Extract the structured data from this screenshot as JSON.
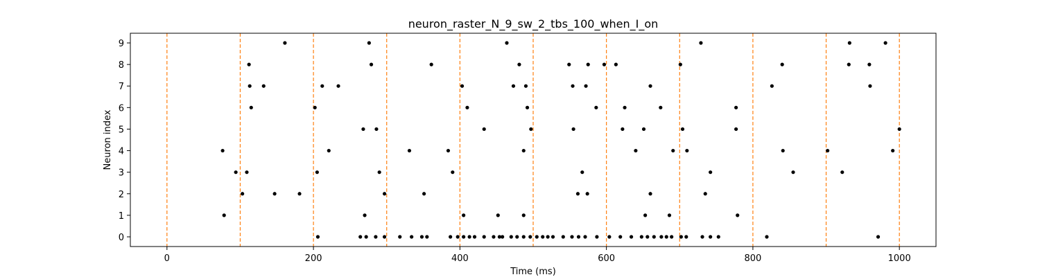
{
  "chart_data": {
    "type": "scatter",
    "title": "neuron_raster_N_9_sw_2_tbs_100_when_I_on",
    "xlabel": "Time (ms)",
    "ylabel": "Neuron index",
    "xlim": [
      -50,
      1050
    ],
    "ylim": [
      -0.45,
      9.45
    ],
    "x_ticks": [
      0,
      200,
      400,
      600,
      800,
      1000
    ],
    "y_ticks": [
      0,
      1,
      2,
      3,
      4,
      5,
      6,
      7,
      8,
      9
    ],
    "grid": false,
    "marker_color": "#000000",
    "vline_color": "#ff7f0e",
    "vlines_x": [
      0,
      100,
      200,
      300,
      400,
      500,
      600,
      700,
      800,
      900,
      1000
    ],
    "spikes": [
      {
        "neuron": 0,
        "times": [
          206,
          264,
          272,
          285,
          297,
          318,
          334,
          348,
          355,
          387,
          397,
          405,
          413,
          420,
          433,
          446,
          454,
          458,
          470,
          478,
          487,
          496,
          505,
          513,
          520,
          527,
          541,
          553,
          562,
          571,
          587,
          604,
          619,
          634,
          648,
          656,
          665,
          675,
          682,
          689,
          702,
          709,
          731,
          742,
          753,
          819,
          971
        ]
      },
      {
        "neuron": 1,
        "times": [
          78,
          270,
          405,
          452,
          487,
          653,
          686,
          779
        ]
      },
      {
        "neuron": 2,
        "times": [
          103,
          147,
          181,
          297,
          351,
          561,
          574,
          660,
          735
        ]
      },
      {
        "neuron": 3,
        "times": [
          94,
          109,
          205,
          290,
          390,
          567,
          742,
          855,
          922
        ]
      },
      {
        "neuron": 4,
        "times": [
          76,
          221,
          331,
          384,
          487,
          640,
          691,
          710,
          841,
          902,
          991
        ]
      },
      {
        "neuron": 5,
        "times": [
          268,
          286,
          433,
          497,
          555,
          622,
          651,
          704,
          777,
          1000
        ]
      },
      {
        "neuron": 6,
        "times": [
          115,
          202,
          410,
          492,
          586,
          625,
          674,
          777
        ]
      },
      {
        "neuron": 7,
        "times": [
          113,
          132,
          212,
          234,
          403,
          473,
          490,
          554,
          572,
          660,
          826,
          960
        ]
      },
      {
        "neuron": 8,
        "times": [
          112,
          279,
          361,
          481,
          549,
          575,
          597,
          613,
          701,
          840,
          931,
          959
        ]
      },
      {
        "neuron": 9,
        "times": [
          161,
          276,
          464,
          729,
          932,
          981
        ]
      }
    ]
  }
}
